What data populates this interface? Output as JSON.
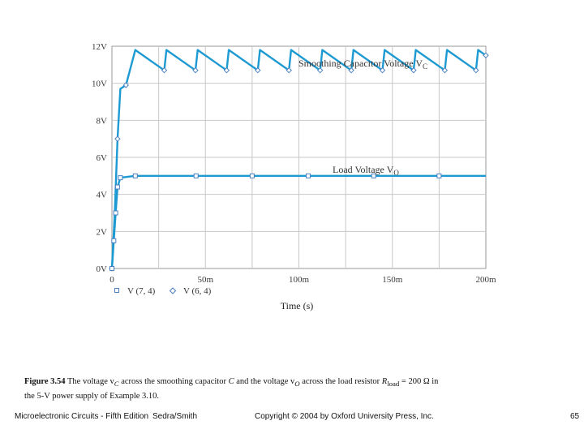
{
  "chart_data": {
    "type": "line",
    "xlabel": "Time (s)",
    "x_ticks": [
      "0",
      "50m",
      "100m",
      "150m",
      "200m"
    ],
    "y_ticks": [
      "0V",
      "2V",
      "4V",
      "6V",
      "8V",
      "10V",
      "12V"
    ],
    "xlim": [
      0,
      0.2
    ],
    "ylim": [
      0,
      12
    ],
    "grid": true,
    "legend_placement": "bottom-left",
    "legend": [
      "V (7, 4)",
      "V (6, 4)"
    ],
    "series": [
      {
        "name": "Smoothing Capacitor Voltage V_C",
        "color": "#1e9ad2",
        "sawtooth": {
          "peak": 11.8,
          "trough": 10.7,
          "period": 0.01667,
          "start": 0.0125
        },
        "rise": [
          [
            0,
            0
          ],
          [
            0.0015,
            3.0
          ],
          [
            0.003,
            7.0
          ],
          [
            0.0045,
            9.7
          ],
          [
            0.0075,
            9.9
          ],
          [
            0.0125,
            11.8
          ]
        ],
        "end_x": 0.2
      },
      {
        "name": "Load Voltage V_O",
        "color": "#1e9ad2",
        "rise": [
          [
            0,
            0
          ],
          [
            0.001,
            1.5
          ],
          [
            0.002,
            3.0
          ],
          [
            0.003,
            4.4
          ],
          [
            0.0045,
            4.9
          ],
          [
            0.0125,
            5.0
          ]
        ],
        "steady": 5.0,
        "end_x": 0.2
      }
    ],
    "annotations": [
      {
        "text": "Smoothing Capacitor Voltage V",
        "sub": "C"
      },
      {
        "text": "Load Voltage V",
        "sub": "O"
      }
    ]
  },
  "caption": {
    "label": "Figure 3.54",
    "t1": "The voltage v",
    "s1": "C",
    "t2": " across the smoothing capacitor ",
    "t3": "C",
    "t4": " and the voltage v",
    "s2": "O",
    "t5": " across the load resistor ",
    "t6": "R",
    "s3": "load",
    "t7": " = 200 Ω in",
    "line2": "the 5-V power supply of Example 3.10."
  },
  "footer": {
    "book": "Microelectronic Circuits - Fifth Edition",
    "authors": "Sedra/Smith",
    "copyright": "Copyright © 2004 by Oxford University Press, Inc.",
    "page": "65"
  }
}
